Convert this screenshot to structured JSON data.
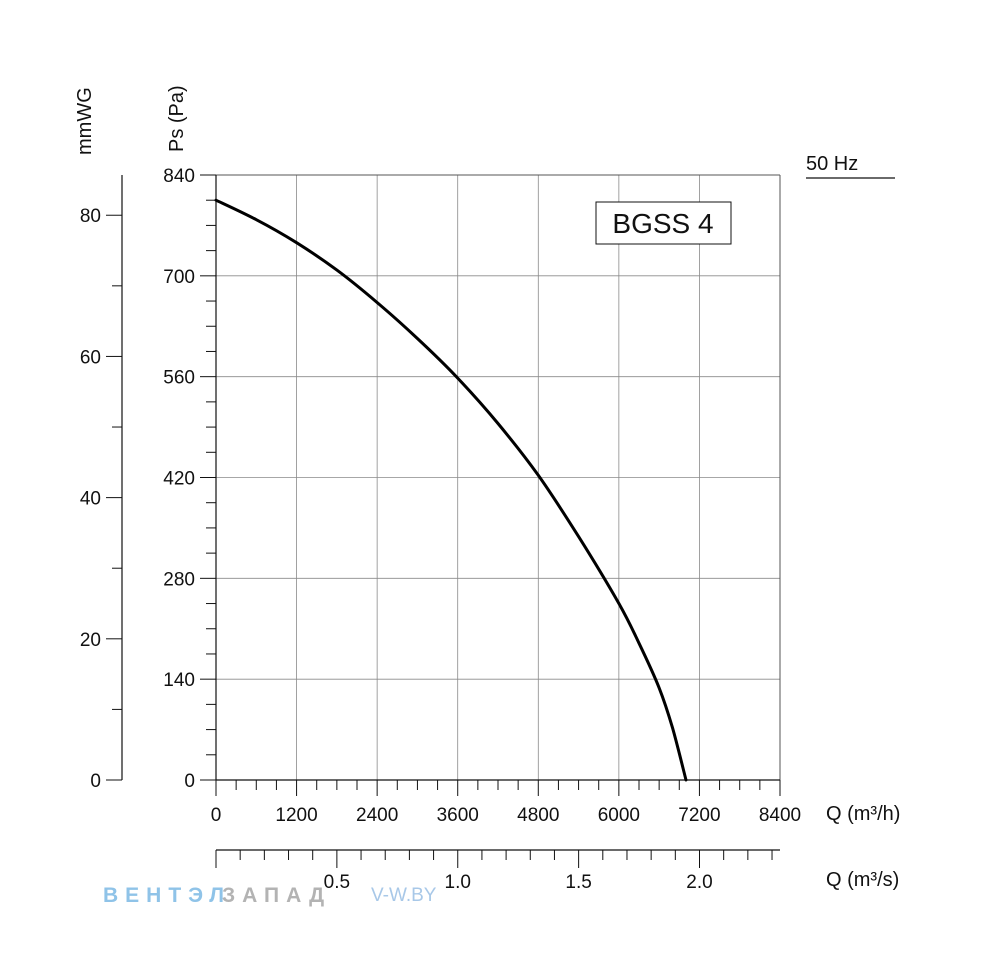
{
  "chart_data": {
    "type": "line",
    "title": "BGSS 4",
    "frequency_label": "50 Hz",
    "x_primary": {
      "label": "Q (m³/h)",
      "range": [
        0,
        8400
      ],
      "major_ticks": [
        0,
        1200,
        2400,
        3600,
        4800,
        6000,
        7200,
        8400
      ],
      "minor_step": 300
    },
    "x_secondary": {
      "label": "Q (m³/s)",
      "range": [
        0,
        2.333
      ],
      "major_ticks": [
        0.5,
        1.0,
        1.5,
        2.0
      ],
      "tick_labels": [
        "0.5",
        "1.0",
        "1.5",
        "2.0"
      ],
      "minor_step": 0.1
    },
    "y_primary": {
      "label": "Ps (Pa)",
      "range": [
        0,
        840
      ],
      "major_ticks": [
        0,
        140,
        280,
        420,
        560,
        700,
        840
      ],
      "minor_step": 35
    },
    "y_secondary": {
      "label": "mmWG",
      "range": [
        0,
        85.7
      ],
      "major_ticks": [
        0,
        20,
        40,
        60,
        80
      ],
      "minor_step": 10
    },
    "grid": true,
    "series": [
      {
        "name": "BGSS 4",
        "x": [
          0,
          600,
          1200,
          1800,
          2400,
          3000,
          3600,
          4200,
          4800,
          5400,
          6000,
          6300,
          6600,
          6800,
          7000
        ],
        "y": [
          805,
          778,
          746,
          708,
          663,
          613,
          558,
          495,
          423,
          338,
          245,
          190,
          128,
          72,
          0
        ]
      }
    ]
  },
  "watermark": {
    "part1": "ВЕНТЭЛ",
    "part2": "ЗАПАД",
    "part3": "V-W.BY"
  }
}
